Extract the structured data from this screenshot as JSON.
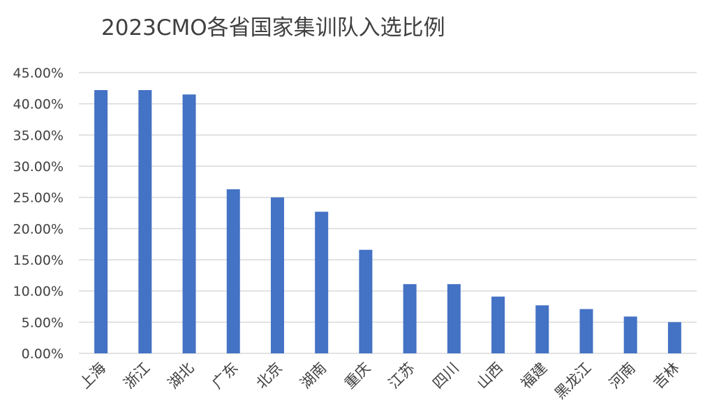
{
  "chart_data": {
    "type": "bar",
    "title": "2023CMO各省国家集训队入选比例",
    "xlabel": "",
    "ylabel": "",
    "categories": [
      "上海",
      "浙江",
      "湖北",
      "广东",
      "北京",
      "湖南",
      "重庆",
      "江苏",
      "四川",
      "山西",
      "福建",
      "黑龙江",
      "河南",
      "吉林"
    ],
    "values": [
      42.2,
      42.2,
      41.5,
      26.3,
      25.0,
      22.7,
      16.6,
      11.1,
      11.1,
      9.1,
      7.7,
      7.1,
      5.9,
      5.0
    ],
    "ylim": [
      0,
      45
    ],
    "yticks": [
      0,
      5,
      10,
      15,
      20,
      25,
      30,
      35,
      40,
      45
    ],
    "ytick_labels": [
      "0.00%",
      "5.00%",
      "10.00%",
      "15.00%",
      "20.00%",
      "25.00%",
      "30.00%",
      "35.00%",
      "40.00%",
      "45.00%"
    ],
    "grid": true,
    "bar_color": "#4472C4",
    "grid_color": "#d9d9d9"
  }
}
